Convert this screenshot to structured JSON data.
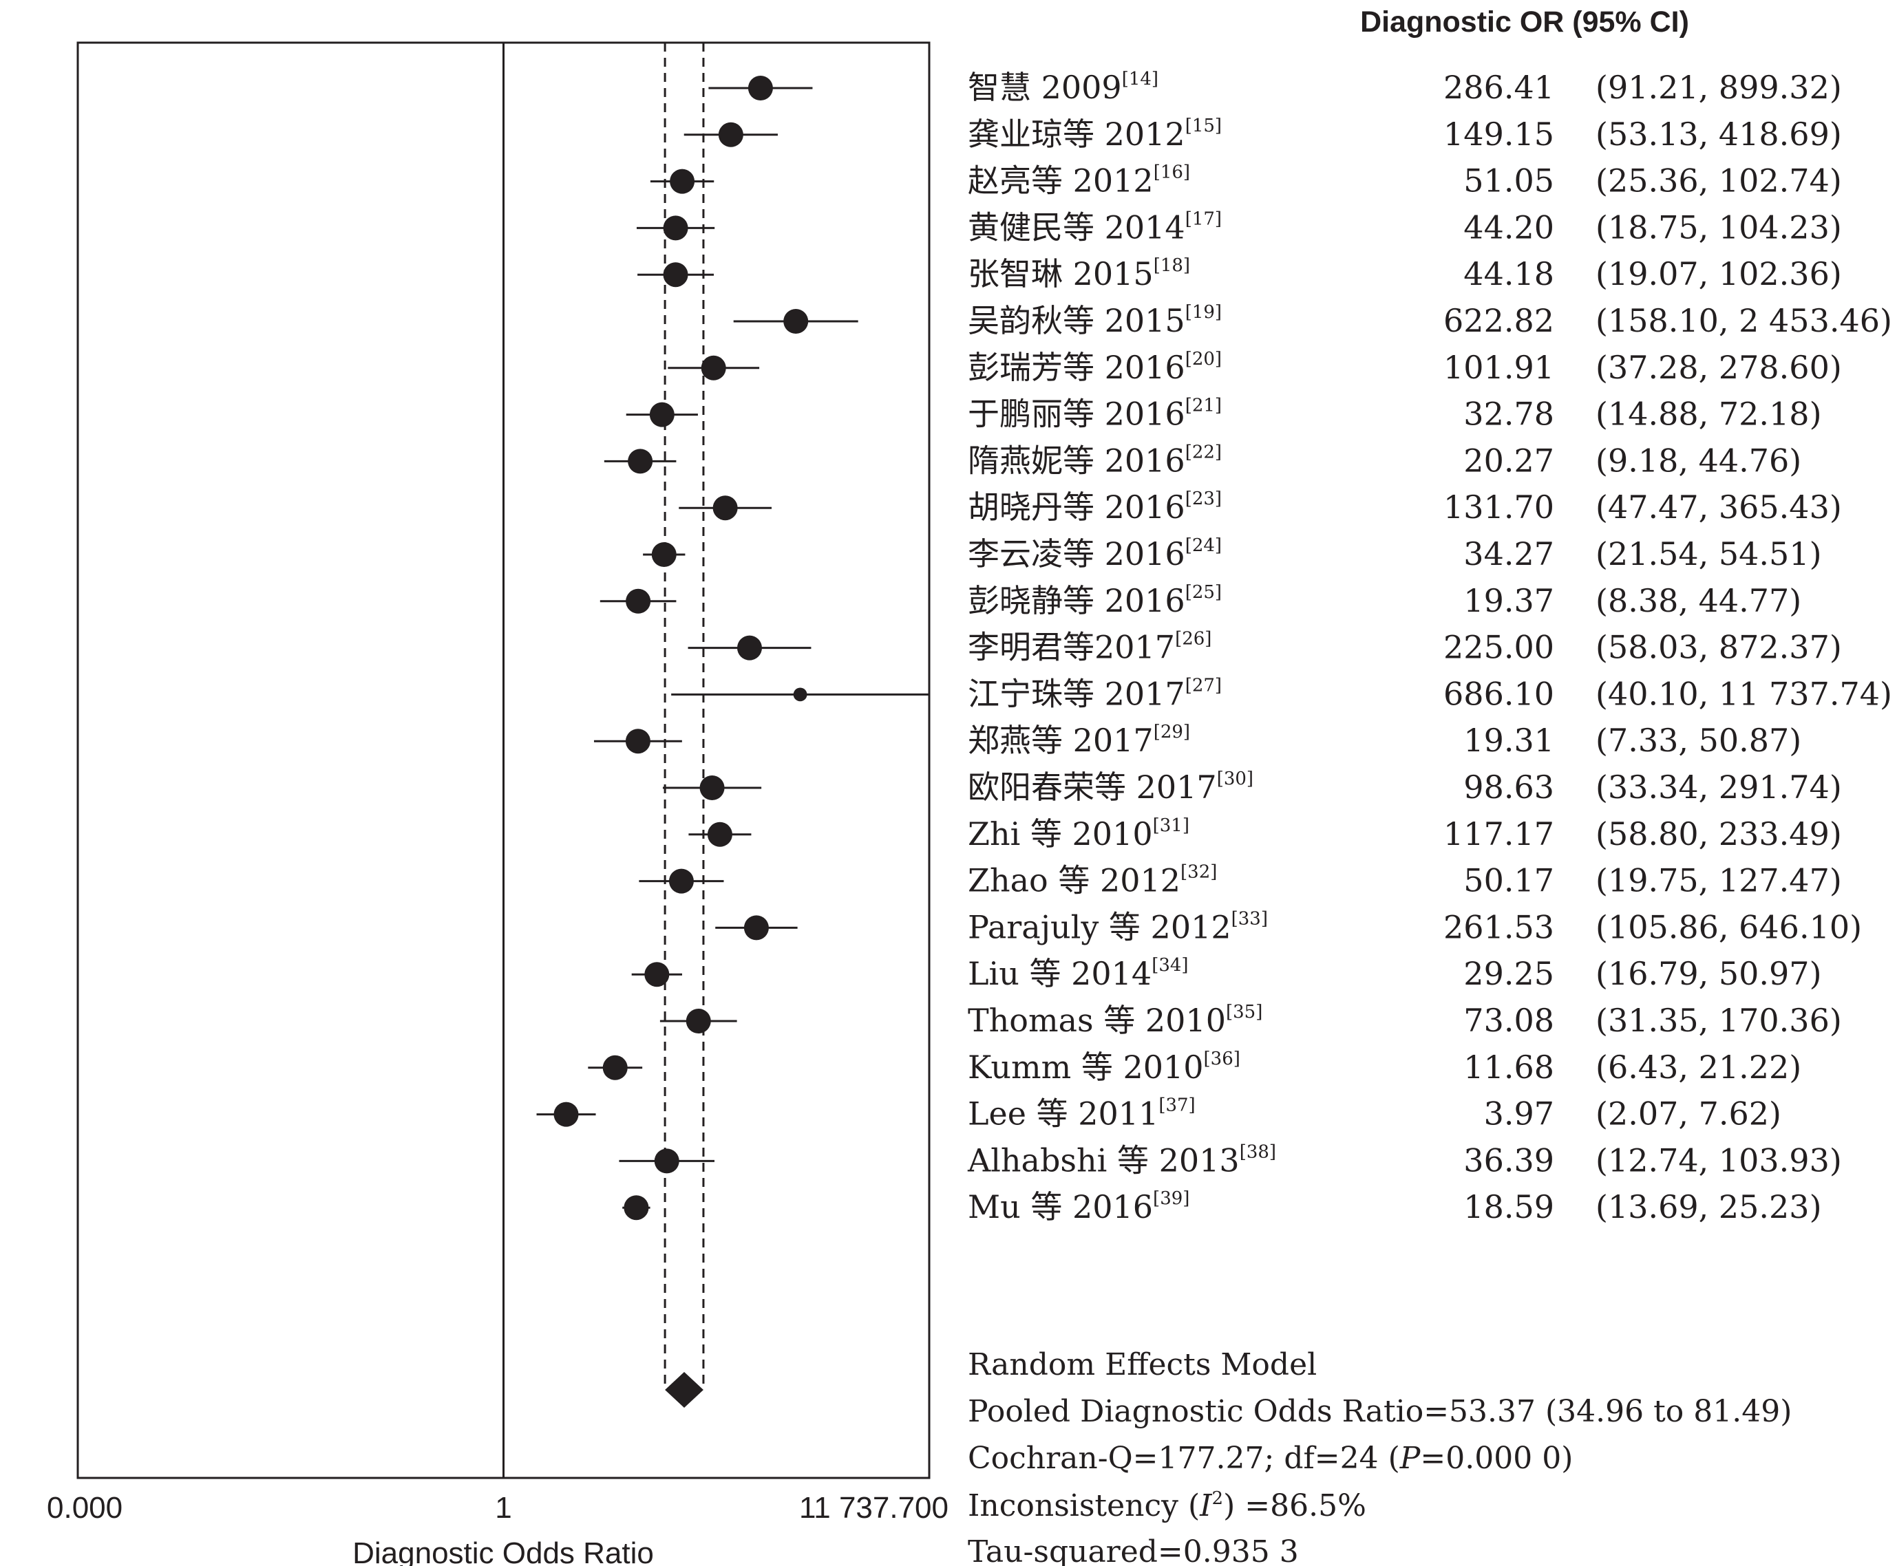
{
  "chart_data": {
    "type": "forest",
    "column_header": "Diagnostic OR (95% CI)",
    "xlabel": "Diagnostic Odds Ratio",
    "x_scale": "log",
    "xlim": [
      8.52e-05,
      11737.7
    ],
    "axis_ticks": [
      {
        "value": 8.52e-05,
        "label": "0.000"
      },
      {
        "value": 1,
        "label": "1"
      },
      {
        "value": 11737.7,
        "label": "11 737.700"
      }
    ],
    "null_line": 1,
    "studies": [
      {
        "name": "智慧 2009",
        "ref": "[14]",
        "or": 286.41,
        "lo": 91.21,
        "hi": 899.32,
        "or_text": "286.41",
        "ci_text": "(91.21, 899.32)",
        "weight": 1.0
      },
      {
        "name": "龚业琼等 2012",
        "ref": "[15]",
        "or": 149.15,
        "lo": 53.13,
        "hi": 418.69,
        "or_text": "149.15",
        "ci_text": "(53.13, 418.69)",
        "weight": 1.0
      },
      {
        "name": "赵亮等 2012",
        "ref": "[16]",
        "or": 51.05,
        "lo": 25.36,
        "hi": 102.74,
        "or_text": "51.05",
        "ci_text": "(25.36, 102.74)",
        "weight": 1.0
      },
      {
        "name": "黄健民等 2014",
        "ref": "[17]",
        "or": 44.2,
        "lo": 18.75,
        "hi": 104.23,
        "or_text": "44.20",
        "ci_text": "(18.75, 104.23)",
        "weight": 1.0
      },
      {
        "name": "张智琳 2015",
        "ref": "[18]",
        "or": 44.18,
        "lo": 19.07,
        "hi": 102.36,
        "or_text": "44.18",
        "ci_text": "(19.07, 102.36)",
        "weight": 1.0
      },
      {
        "name": "吴韵秋等 2015",
        "ref": "[19]",
        "or": 622.82,
        "lo": 158.1,
        "hi": 2453.46,
        "or_text": "622.82",
        "ci_text": "(158.10, 2 453.46)",
        "weight": 1.0
      },
      {
        "name": "彭瑞芳等 2016",
        "ref": "[20]",
        "or": 101.91,
        "lo": 37.28,
        "hi": 278.6,
        "or_text": "101.91",
        "ci_text": "(37.28, 278.60)",
        "weight": 1.0
      },
      {
        "name": "于鹏丽等 2016",
        "ref": "[21]",
        "or": 32.78,
        "lo": 14.88,
        "hi": 72.18,
        "or_text": "32.78",
        "ci_text": "(14.88, 72.18)",
        "weight": 1.0
      },
      {
        "name": "隋燕妮等 2016",
        "ref": "[22]",
        "or": 20.27,
        "lo": 9.18,
        "hi": 44.76,
        "or_text": "20.27",
        "ci_text": "(9.18, 44.76)",
        "weight": 1.0
      },
      {
        "name": "胡晓丹等 2016",
        "ref": "[23]",
        "or": 131.7,
        "lo": 47.47,
        "hi": 365.43,
        "or_text": "131.70",
        "ci_text": "(47.47, 365.43)",
        "weight": 1.0
      },
      {
        "name": "李云凌等 2016",
        "ref": "[24]",
        "or": 34.27,
        "lo": 21.54,
        "hi": 54.51,
        "or_text": "34.27",
        "ci_text": "(21.54, 54.51)",
        "weight": 1.0
      },
      {
        "name": "彭晓静等 2016",
        "ref": "[25]",
        "or": 19.37,
        "lo": 8.38,
        "hi": 44.77,
        "or_text": "19.37",
        "ci_text": "(8.38, 44.77)",
        "weight": 1.0
      },
      {
        "name": "李明君等2017",
        "ref": "[26]",
        "or": 225.0,
        "lo": 58.03,
        "hi": 872.37,
        "or_text": "225.00",
        "ci_text": "(58.03, 872.37)",
        "weight": 1.0
      },
      {
        "name": "江宁珠等 2017",
        "ref": "[27]",
        "or": 686.1,
        "lo": 40.1,
        "hi": 11737.74,
        "or_text": "686.10",
        "ci_text": "(40.10, 11 737.74)",
        "weight": 0.55
      },
      {
        "name": "郑燕等 2017",
        "ref": "[29]",
        "or": 19.31,
        "lo": 7.33,
        "hi": 50.87,
        "or_text": "19.31",
        "ci_text": "(7.33, 50.87)",
        "weight": 1.0
      },
      {
        "name": "欧阳春荣等 2017",
        "ref": "[30]",
        "or": 98.63,
        "lo": 33.34,
        "hi": 291.74,
        "or_text": "98.63",
        "ci_text": "(33.34, 291.74)",
        "weight": 1.0
      },
      {
        "name": "Zhi 等 2010",
        "ref": "[31]",
        "or": 117.17,
        "lo": 58.8,
        "hi": 233.49,
        "or_text": "117.17",
        "ci_text": "(58.80, 233.49)",
        "weight": 1.0
      },
      {
        "name": "Zhao 等 2012",
        "ref": "[32]",
        "or": 50.17,
        "lo": 19.75,
        "hi": 127.47,
        "or_text": "50.17",
        "ci_text": "(19.75, 127.47)",
        "weight": 1.0
      },
      {
        "name": "Parajuly 等 2012",
        "ref": "[33]",
        "or": 261.53,
        "lo": 105.86,
        "hi": 646.1,
        "or_text": "261.53",
        "ci_text": "(105.86, 646.10)",
        "weight": 1.0
      },
      {
        "name": "Liu 等 2014",
        "ref": "[34]",
        "or": 29.25,
        "lo": 16.79,
        "hi": 50.97,
        "or_text": "29.25",
        "ci_text": "(16.79, 50.97)",
        "weight": 1.0
      },
      {
        "name": "Thomas 等 2010",
        "ref": "[35]",
        "or": 73.08,
        "lo": 31.35,
        "hi": 170.36,
        "or_text": "73.08",
        "ci_text": "(31.35, 170.36)",
        "weight": 1.0
      },
      {
        "name": "Kumm 等 2010",
        "ref": "[36]",
        "or": 11.68,
        "lo": 6.43,
        "hi": 21.22,
        "or_text": "11.68",
        "ci_text": "(6.43, 21.22)",
        "weight": 1.0
      },
      {
        "name": "Lee 等 2011",
        "ref": "[37]",
        "or": 3.97,
        "lo": 2.07,
        "hi": 7.62,
        "or_text": "3.97",
        "ci_text": "(2.07, 7.62)",
        "weight": 1.0
      },
      {
        "name": "Alhabshi 等 2013",
        "ref": "[38]",
        "or": 36.39,
        "lo": 12.74,
        "hi": 103.93,
        "or_text": "36.39",
        "ci_text": "(12.74, 103.93)",
        "weight": 1.0
      },
      {
        "name": "Mu 等 2016",
        "ref": "[39]",
        "or": 18.59,
        "lo": 13.69,
        "hi": 25.23,
        "or_text": "18.59",
        "ci_text": "(13.69, 25.23)",
        "weight": 1.0
      }
    ],
    "pooled": {
      "or": 53.37,
      "lo": 34.96,
      "hi": 81.49
    },
    "summary": {
      "model": "Random Effects Model",
      "pooled_text": "Pooled Diagnostic Odds Ratio=53.37 (34.96 to 81.49)",
      "cochran_prefix": "Cochran-Q=177.27; df=24 (",
      "cochran_p_symbol": "P",
      "cochran_suffix": "=0.000 0)",
      "inconsistency_prefix": "Inconsistency (",
      "inconsistency_symbol": "I",
      "inconsistency_exp": "2",
      "inconsistency_suffix": ") =86.5%",
      "tau_text": "Tau-squared=0.935 3"
    }
  }
}
